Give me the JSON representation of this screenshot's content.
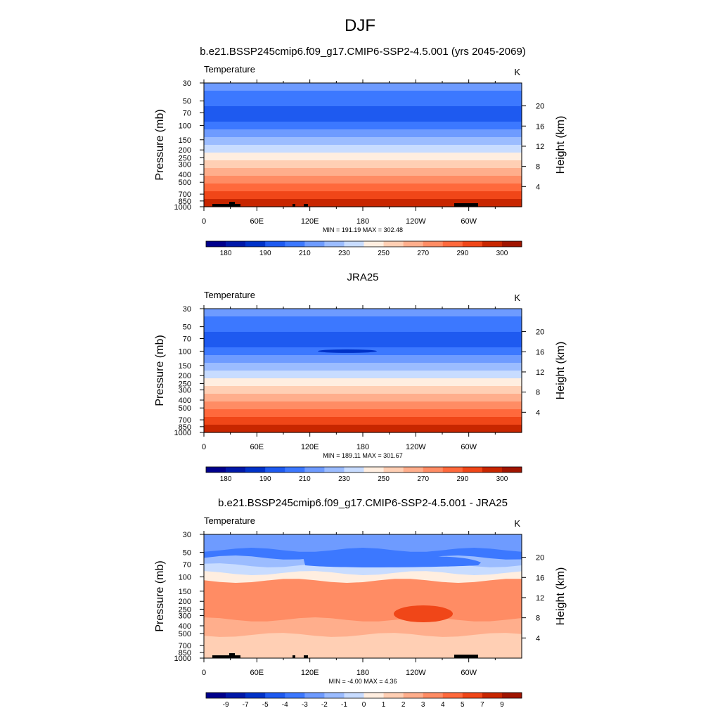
{
  "figure": {
    "title": "DJF"
  },
  "panel_colors": {
    "abs": [
      "#00008c",
      "#0018a8",
      "#0032c8",
      "#1e5af0",
      "#3c78ff",
      "#6e9bff",
      "#9bbcff",
      "#c8dcff",
      "#ffeee0",
      "#ffcfb4",
      "#ffae8c",
      "#ff8c64",
      "#ff693c",
      "#f04618",
      "#c82600",
      "#a01400",
      "#780000"
    ],
    "diff": [
      "#00008c",
      "#0018a8",
      "#0032c8",
      "#1e5af0",
      "#3c78ff",
      "#6e9bff",
      "#9bbcff",
      "#c8dcff",
      "#ffeee0",
      "#ffcfb4",
      "#ffae8c",
      "#ff8c64",
      "#ff693c",
      "#f04618",
      "#c82600",
      "#a01400",
      "#780000"
    ]
  },
  "chart_data": [
    {
      "type": "heatmap",
      "title": "b.e21.BSSP245cmip6.f09_g17.CMIP6-SSP2-4.5.001 (yrs 2045-2069)",
      "left_label": "Temperature",
      "units": "K",
      "ylabel": "Pressure (mb)",
      "y2label": "Height (km)",
      "x_ticks": [
        "0",
        "60E",
        "120E",
        "180",
        "120W",
        "60W"
      ],
      "y_ticks": [
        "30",
        "50",
        "70",
        "100",
        "150",
        "200",
        "250",
        "300",
        "400",
        "500",
        "700",
        "850",
        "1000"
      ],
      "y2_ticks": [
        "20",
        "16",
        "12",
        "8",
        "4"
      ],
      "stats": "MIN = 191.19  MAX = 302.48",
      "colorbar_labels": [
        "180",
        "190",
        "210",
        "230",
        "250",
        "270",
        "290",
        "300"
      ],
      "bands": [
        5,
        4,
        4,
        3,
        3,
        4,
        5,
        6,
        7,
        8,
        9,
        10,
        11,
        12,
        13,
        14
      ],
      "terrain": true
    },
    {
      "type": "heatmap",
      "title": "JRA25",
      "left_label": "Temperature",
      "units": "K",
      "ylabel": "Pressure (mb)",
      "y2label": "Height (km)",
      "x_ticks": [
        "0",
        "60E",
        "120E",
        "180",
        "120W",
        "60W"
      ],
      "y_ticks": [
        "30",
        "50",
        "70",
        "100",
        "150",
        "200",
        "250",
        "300",
        "400",
        "500",
        "700",
        "850",
        "1000"
      ],
      "y2_ticks": [
        "20",
        "16",
        "12",
        "8",
        "4"
      ],
      "stats": "MIN = 189.11  MAX = 301.67",
      "colorbar_labels": [
        "180",
        "190",
        "210",
        "230",
        "250",
        "270",
        "290",
        "300"
      ],
      "bands": [
        5,
        4,
        4,
        3,
        3,
        4,
        5,
        6,
        7,
        8,
        9,
        10,
        11,
        12,
        13,
        14
      ],
      "terrain": false
    },
    {
      "type": "heatmap",
      "title": "b.e21.BSSP245cmip6.f09_g17.CMIP6-SSP2-4.5.001 - JRA25",
      "left_label": "Temperature",
      "units": "K",
      "ylabel": "Pressure (mb)",
      "y2label": "Height (km)",
      "x_ticks": [
        "0",
        "60E",
        "120E",
        "180",
        "120W",
        "60W"
      ],
      "y_ticks": [
        "30",
        "50",
        "70",
        "100",
        "150",
        "200",
        "250",
        "300",
        "400",
        "500",
        "700",
        "850",
        "1000"
      ],
      "y2_ticks": [
        "20",
        "16",
        "12",
        "8",
        "4"
      ],
      "stats": "MIN = -4.00  MAX =  4.36",
      "colorbar_labels": [
        "-9",
        "-7",
        "-5",
        "-4",
        "-3",
        "-2",
        "-1",
        "0",
        "1",
        "2",
        "3",
        "4",
        "5",
        "7",
        "9"
      ],
      "bands": [
        5,
        5,
        4,
        6,
        7,
        8,
        11,
        11,
        11,
        11,
        11,
        10,
        10,
        9,
        9,
        9
      ],
      "terrain": true
    }
  ]
}
